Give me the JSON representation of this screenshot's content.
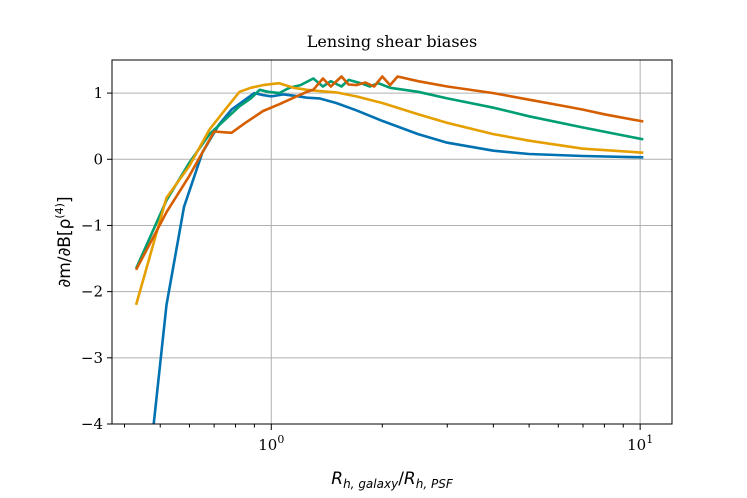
{
  "chart_data": {
    "type": "line",
    "title": "Lensing shear biases",
    "xlabel_parts": {
      "base": "R",
      "sub1": "h, galaxy",
      "slash": "/",
      "sub2": "h, PSF"
    },
    "ylabel_parts": {
      "prefix": "∂m/∂B[ρ",
      "sup": "(4)",
      "suffix": "]"
    },
    "x_scale": "log",
    "xlim": [
      0.37,
      12.2
    ],
    "ylim": [
      -4,
      1.5
    ],
    "grid": true,
    "x_major_ticks": [
      {
        "value": 1,
        "base": "10",
        "exp": "0"
      },
      {
        "value": 10,
        "base": "10",
        "exp": "1"
      }
    ],
    "y_ticks": [
      {
        "value": -4,
        "label": "−4"
      },
      {
        "value": -3,
        "label": "−3"
      },
      {
        "value": -2,
        "label": "−2"
      },
      {
        "value": -1,
        "label": "−1"
      },
      {
        "value": 0,
        "label": "0"
      },
      {
        "value": 1,
        "label": "1"
      }
    ],
    "series": [
      {
        "color": "#0072b2",
        "x": [
          0.48,
          0.52,
          0.58,
          0.65,
          0.72,
          0.78,
          0.85,
          0.9,
          0.95,
          1.0,
          1.08,
          1.15,
          1.25,
          1.35,
          1.5,
          1.7,
          2.0,
          2.5,
          3.0,
          4.0,
          5.0,
          7.0,
          10.2
        ],
        "y": [
          -4.0,
          -2.2,
          -0.72,
          0.1,
          0.52,
          0.75,
          0.9,
          1.0,
          0.97,
          0.95,
          0.98,
          0.96,
          0.93,
          0.92,
          0.85,
          0.74,
          0.58,
          0.38,
          0.25,
          0.13,
          0.08,
          0.05,
          0.03
        ]
      },
      {
        "color": "#009e73",
        "x": [
          0.43,
          0.52,
          0.6,
          0.68,
          0.75,
          0.82,
          0.88,
          0.93,
          0.98,
          1.05,
          1.12,
          1.2,
          1.3,
          1.38,
          1.45,
          1.55,
          1.62,
          1.75,
          1.85,
          1.95,
          2.1,
          2.5,
          3.0,
          4.0,
          5.0,
          7.0,
          10.2
        ],
        "y": [
          -1.65,
          -0.62,
          -0.05,
          0.38,
          0.6,
          0.8,
          0.92,
          1.05,
          1.02,
          1.0,
          1.08,
          1.12,
          1.22,
          1.1,
          1.18,
          1.1,
          1.2,
          1.15,
          1.1,
          1.15,
          1.08,
          1.02,
          0.92,
          0.78,
          0.65,
          0.48,
          0.3
        ]
      },
      {
        "color": "#e69f00",
        "x": [
          0.43,
          0.52,
          0.6,
          0.68,
          0.75,
          0.82,
          0.88,
          0.95,
          1.05,
          1.15,
          1.25,
          1.35,
          1.5,
          1.7,
          2.0,
          2.5,
          3.0,
          4.0,
          5.0,
          7.0,
          10.2
        ],
        "y": [
          -2.2,
          -0.58,
          -0.1,
          0.45,
          0.75,
          1.02,
          1.08,
          1.12,
          1.15,
          1.08,
          1.05,
          1.03,
          1.01,
          0.95,
          0.85,
          0.68,
          0.55,
          0.38,
          0.28,
          0.16,
          0.1
        ]
      },
      {
        "color": "#d55e00",
        "x": [
          0.43,
          0.52,
          0.6,
          0.7,
          0.78,
          0.85,
          0.95,
          1.05,
          1.15,
          1.25,
          1.3,
          1.38,
          1.45,
          1.55,
          1.62,
          1.7,
          1.8,
          1.9,
          2.0,
          2.1,
          2.2,
          2.5,
          3.0,
          4.0,
          5.0,
          6.0,
          7.0,
          8.0,
          10.2
        ],
        "y": [
          -1.67,
          -0.8,
          -0.25,
          0.42,
          0.4,
          0.55,
          0.73,
          0.83,
          0.93,
          1.02,
          1.05,
          1.22,
          1.1,
          1.25,
          1.13,
          1.12,
          1.16,
          1.1,
          1.25,
          1.12,
          1.25,
          1.18,
          1.1,
          1.0,
          0.9,
          0.82,
          0.75,
          0.68,
          0.57
        ]
      }
    ]
  }
}
